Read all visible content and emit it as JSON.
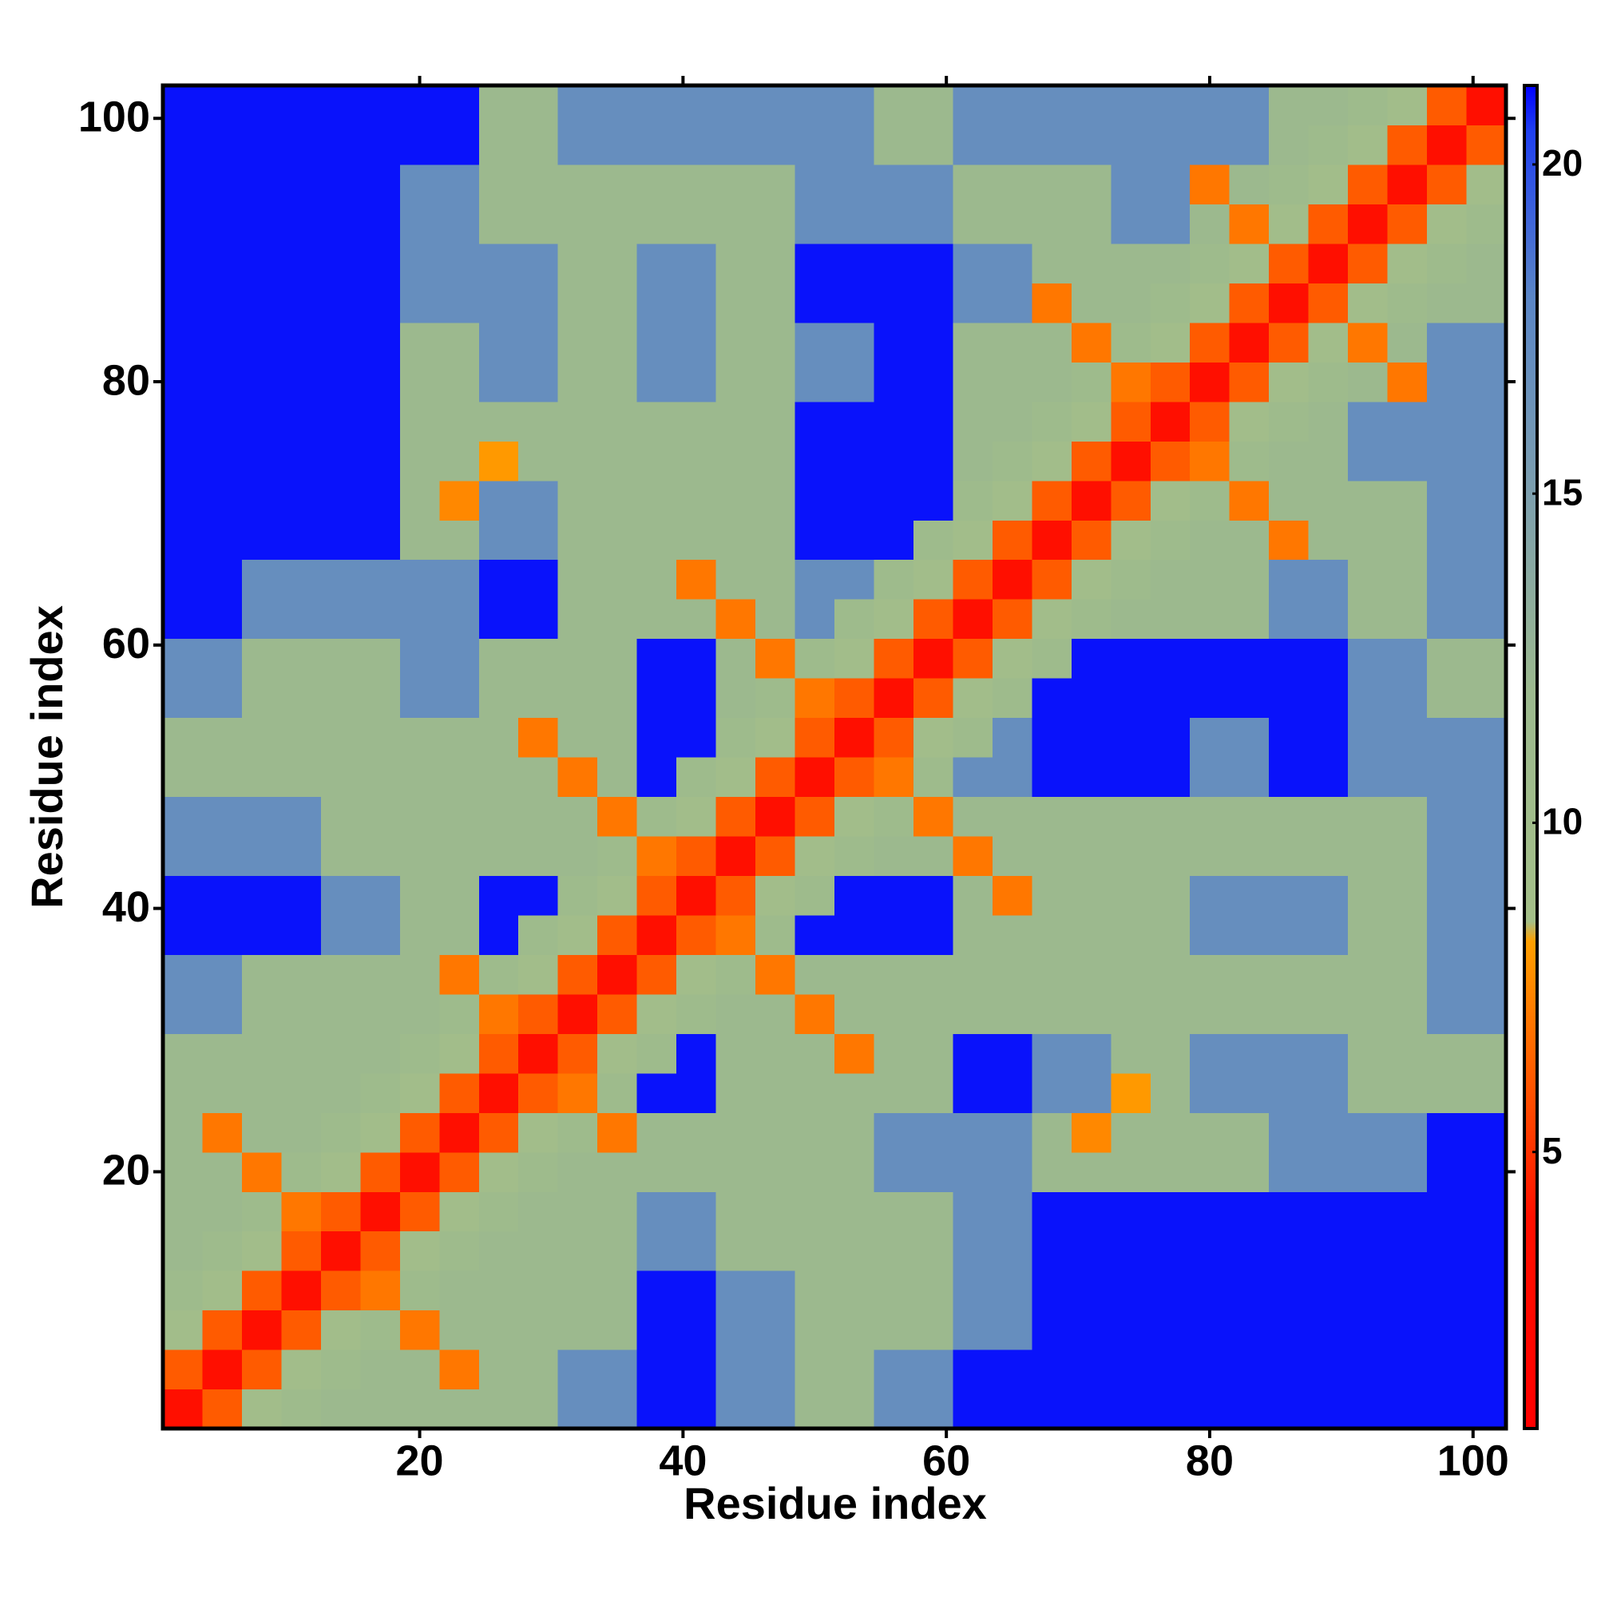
{
  "chart_data": {
    "type": "heatmap",
    "xlabel": "Residue index",
    "ylabel": "Residue index",
    "xlim": [
      0.5,
      102.5
    ],
    "ylim": [
      0.5,
      102.5
    ],
    "xticks": [
      20,
      40,
      60,
      80,
      100
    ],
    "yticks": [
      20,
      40,
      60,
      80,
      100
    ],
    "zlim": [
      0.8,
      21.2
    ],
    "zticks": [
      5,
      10,
      15,
      20
    ],
    "colorscale": [
      {
        "value": 0.8,
        "color": "#ff0000"
      },
      {
        "value": 4,
        "color": "#ff1000"
      },
      {
        "value": 8.2,
        "color": "#ffa000"
      },
      {
        "value": 8.5,
        "color": "#a4bf88"
      },
      {
        "value": 12,
        "color": "#9cb98e"
      },
      {
        "value": 15,
        "color": "#7d9fae"
      },
      {
        "value": 18,
        "color": "#5a85c6"
      },
      {
        "value": 20.5,
        "color": "#2040f0"
      },
      {
        "value": 21.2,
        "color": "#0000ff"
      }
    ],
    "x": [
      2,
      5,
      8,
      11,
      14,
      17,
      20,
      23,
      26,
      29,
      32,
      35,
      38,
      41,
      44,
      47,
      50,
      53,
      56,
      59,
      62,
      65,
      68,
      71,
      74,
      77,
      80,
      83,
      86,
      89,
      92,
      95,
      98,
      101
    ],
    "y": [
      2,
      5,
      8,
      11,
      14,
      17,
      20,
      23,
      26,
      29,
      32,
      35,
      38,
      41,
      44,
      47,
      50,
      53,
      56,
      59,
      62,
      65,
      68,
      71,
      74,
      77,
      80,
      83,
      86,
      89,
      92,
      95,
      98,
      101
    ],
    "z": [
      [
        3.8,
        6.2,
        9.5,
        11,
        12,
        12,
        12,
        12,
        12,
        12,
        17,
        17,
        21,
        21,
        17,
        17,
        12,
        12,
        17,
        17,
        21,
        21,
        21,
        21,
        21,
        21,
        21,
        21,
        21,
        21,
        21,
        21,
        21,
        21
      ],
      [
        6.2,
        3.8,
        6.2,
        9.5,
        11,
        12,
        12,
        7,
        12,
        12,
        17,
        17,
        21,
        21,
        17,
        17,
        12,
        12,
        17,
        17,
        21,
        21,
        21,
        21,
        21,
        21,
        21,
        21,
        21,
        21,
        21,
        21,
        21,
        21
      ],
      [
        9.5,
        6.2,
        3.8,
        6.2,
        9.5,
        11,
        7,
        12,
        12,
        12,
        12,
        12,
        21,
        21,
        17,
        17,
        12,
        12,
        12,
        12,
        17,
        17,
        21,
        21,
        21,
        21,
        21,
        21,
        21,
        21,
        21,
        21,
        21,
        21
      ],
      [
        11,
        9.5,
        6.2,
        3.8,
        6.2,
        7,
        11,
        12,
        12,
        12,
        12,
        12,
        21,
        21,
        17,
        17,
        12,
        12,
        12,
        12,
        17,
        17,
        21,
        21,
        21,
        21,
        21,
        21,
        21,
        21,
        21,
        21,
        21,
        21
      ],
      [
        12,
        11,
        9.5,
        6.2,
        3.8,
        6.2,
        9.5,
        11,
        12,
        12,
        12,
        12,
        17,
        17,
        12,
        12,
        12,
        12,
        12,
        12,
        17,
        17,
        21,
        21,
        21,
        21,
        21,
        21,
        21,
        21,
        21,
        21,
        21,
        21
      ],
      [
        12,
        12,
        11,
        7,
        6.2,
        3.8,
        6.2,
        9.5,
        11,
        12,
        12,
        12,
        17,
        17,
        12,
        12,
        12,
        12,
        12,
        12,
        17,
        17,
        21,
        21,
        21,
        21,
        21,
        21,
        21,
        21,
        21,
        21,
        21,
        21
      ],
      [
        12,
        12,
        7,
        11,
        9.5,
        6.2,
        3.8,
        6.2,
        9.5,
        11,
        12,
        12,
        12,
        12,
        12,
        12,
        12,
        12,
        17,
        17,
        17,
        17,
        12,
        12,
        12,
        12,
        12,
        12,
        17,
        17,
        17,
        17,
        21,
        21
      ],
      [
        12,
        7,
        12,
        12,
        11,
        9.5,
        6.2,
        3.8,
        6.2,
        9.5,
        11,
        7,
        12,
        12,
        12,
        12,
        12,
        12,
        17,
        17,
        17,
        17,
        12,
        7.5,
        12,
        12,
        12,
        12,
        17,
        17,
        17,
        17,
        21,
        21
      ],
      [
        12,
        12,
        12,
        12,
        12,
        11,
        9.5,
        6.2,
        3.8,
        6.2,
        7,
        11,
        21,
        21,
        12,
        12,
        12,
        12,
        12,
        12,
        21,
        21,
        17,
        17,
        8,
        12,
        17,
        17,
        17,
        17,
        12,
        12,
        12,
        12
      ],
      [
        12,
        12,
        12,
        12,
        12,
        12,
        11,
        9.5,
        6.2,
        3.8,
        6.2,
        9.5,
        11,
        21,
        12,
        12,
        12,
        7,
        12,
        12,
        21,
        21,
        17,
        17,
        12,
        12,
        17,
        17,
        17,
        17,
        12,
        12,
        12,
        12
      ],
      [
        17,
        17,
        12,
        12,
        12,
        12,
        12,
        11,
        7,
        6.2,
        3.8,
        6.2,
        9.5,
        11,
        12,
        12,
        7,
        12,
        12,
        12,
        12,
        12,
        12,
        12,
        12,
        12,
        12,
        12,
        12,
        12,
        12,
        12,
        17,
        17
      ],
      [
        17,
        17,
        12,
        12,
        12,
        12,
        12,
        7,
        11,
        9.5,
        6.2,
        3.8,
        6.2,
        9.5,
        11,
        7,
        12,
        12,
        12,
        12,
        12,
        12,
        12,
        12,
        12,
        12,
        12,
        12,
        12,
        12,
        12,
        12,
        17,
        17
      ],
      [
        21,
        21,
        21,
        21,
        17,
        17,
        12,
        12,
        21,
        11,
        9.5,
        6.2,
        3.8,
        6.2,
        7,
        11,
        21,
        21,
        21,
        21,
        12,
        12,
        12,
        12,
        12,
        12,
        17,
        17,
        17,
        17,
        12,
        12,
        17,
        17
      ],
      [
        21,
        21,
        21,
        21,
        17,
        17,
        12,
        12,
        21,
        21,
        11,
        9.5,
        6.2,
        3.8,
        6.2,
        9.5,
        11,
        21,
        21,
        21,
        12,
        7,
        12,
        12,
        12,
        12,
        17,
        17,
        17,
        17,
        12,
        12,
        17,
        17
      ],
      [
        17,
        17,
        17,
        17,
        12,
        12,
        12,
        12,
        12,
        12,
        12,
        11,
        7,
        6.2,
        3.8,
        6.2,
        9.5,
        11,
        12,
        12,
        7,
        12,
        12,
        12,
        12,
        12,
        12,
        12,
        12,
        12,
        12,
        12,
        17,
        17
      ],
      [
        17,
        17,
        17,
        17,
        12,
        12,
        12,
        12,
        12,
        12,
        12,
        7,
        11,
        9.5,
        6.2,
        3.8,
        6.2,
        9.5,
        11,
        7,
        12,
        12,
        12,
        12,
        12,
        12,
        12,
        12,
        12,
        12,
        12,
        12,
        17,
        17
      ],
      [
        12,
        12,
        12,
        12,
        12,
        12,
        12,
        12,
        12,
        12,
        7,
        12,
        21,
        11,
        9.5,
        6.2,
        3.8,
        6.2,
        7,
        11,
        17,
        17,
        21,
        21,
        21,
        21,
        17,
        17,
        21,
        21,
        17,
        17,
        17,
        17
      ],
      [
        12,
        12,
        12,
        12,
        12,
        12,
        12,
        12,
        12,
        7,
        12,
        12,
        21,
        21,
        11,
        9.5,
        6.2,
        3.8,
        6.2,
        9.5,
        11,
        17,
        21,
        21,
        21,
        21,
        17,
        17,
        21,
        21,
        17,
        17,
        17,
        17
      ],
      [
        17,
        17,
        12,
        12,
        12,
        12,
        17,
        17,
        12,
        12,
        12,
        12,
        21,
        21,
        12,
        11,
        7,
        6.2,
        3.8,
        6.2,
        9.5,
        11,
        21,
        21,
        21,
        21,
        21,
        21,
        21,
        21,
        17,
        17,
        12,
        12
      ],
      [
        17,
        17,
        12,
        12,
        12,
        12,
        17,
        17,
        12,
        12,
        12,
        12,
        21,
        21,
        12,
        7,
        11,
        9.5,
        6.2,
        3.8,
        6.2,
        9.5,
        11,
        21,
        21,
        21,
        21,
        21,
        21,
        21,
        17,
        17,
        12,
        12
      ],
      [
        21,
        21,
        17,
        17,
        17,
        17,
        17,
        17,
        21,
        21,
        12,
        12,
        12,
        12,
        7,
        12,
        17,
        11,
        9.5,
        6.2,
        3.8,
        6.2,
        9.5,
        11,
        12,
        12,
        12,
        12,
        17,
        17,
        12,
        12,
        17,
        17
      ],
      [
        21,
        21,
        17,
        17,
        17,
        17,
        17,
        17,
        21,
        21,
        12,
        12,
        12,
        7,
        12,
        12,
        17,
        17,
        11,
        9.5,
        6.2,
        3.8,
        6.2,
        9.5,
        11,
        12,
        12,
        12,
        17,
        17,
        12,
        12,
        17,
        17
      ],
      [
        21,
        21,
        21,
        21,
        21,
        21,
        12,
        12,
        17,
        17,
        12,
        12,
        12,
        12,
        12,
        12,
        21,
        21,
        21,
        11,
        9.5,
        6.2,
        3.8,
        6.2,
        9.5,
        11,
        12,
        12,
        7,
        12,
        12,
        12,
        17,
        17
      ],
      [
        21,
        21,
        21,
        21,
        21,
        21,
        12,
        7.5,
        17,
        17,
        12,
        12,
        12,
        12,
        12,
        12,
        21,
        21,
        21,
        21,
        11,
        9.5,
        6.2,
        3.8,
        6.2,
        9.5,
        11,
        7,
        12,
        12,
        12,
        12,
        17,
        17
      ],
      [
        21,
        21,
        21,
        21,
        21,
        21,
        12,
        12,
        8,
        12,
        12,
        12,
        12,
        12,
        12,
        12,
        21,
        21,
        21,
        21,
        12,
        11,
        9.5,
        6.2,
        3.8,
        6.2,
        7,
        11,
        12,
        12,
        17,
        17,
        17,
        17
      ],
      [
        21,
        21,
        21,
        21,
        21,
        21,
        12,
        12,
        12,
        12,
        12,
        12,
        12,
        12,
        12,
        12,
        21,
        21,
        21,
        21,
        12,
        12,
        11,
        9.5,
        6.2,
        3.8,
        6.2,
        9.5,
        11,
        12,
        17,
        17,
        17,
        17
      ],
      [
        21,
        21,
        21,
        21,
        21,
        21,
        12,
        12,
        17,
        17,
        12,
        12,
        17,
        17,
        12,
        12,
        17,
        17,
        21,
        21,
        12,
        12,
        12,
        11,
        7,
        6.2,
        3.8,
        6.2,
        9.5,
        11,
        12,
        7,
        17,
        17
      ],
      [
        21,
        21,
        21,
        21,
        21,
        21,
        12,
        12,
        17,
        17,
        12,
        12,
        17,
        17,
        12,
        12,
        17,
        17,
        21,
        21,
        12,
        12,
        12,
        7,
        11,
        9.5,
        6.2,
        3.8,
        6.2,
        9.5,
        7,
        12,
        17,
        17
      ],
      [
        21,
        21,
        21,
        21,
        21,
        21,
        17,
        17,
        17,
        17,
        12,
        12,
        17,
        17,
        12,
        12,
        21,
        21,
        21,
        21,
        17,
        17,
        7,
        12,
        12,
        11,
        9.5,
        6.2,
        3.8,
        6.2,
        9.5,
        11,
        12,
        12
      ],
      [
        21,
        21,
        21,
        21,
        21,
        21,
        17,
        17,
        17,
        17,
        12,
        12,
        17,
        17,
        12,
        12,
        21,
        21,
        21,
        21,
        17,
        17,
        12,
        12,
        12,
        12,
        11,
        9.5,
        6.2,
        3.8,
        6.2,
        9.5,
        11,
        12
      ],
      [
        21,
        21,
        21,
        21,
        21,
        21,
        17,
        17,
        12,
        12,
        12,
        12,
        12,
        12,
        12,
        12,
        17,
        17,
        17,
        17,
        12,
        12,
        12,
        12,
        17,
        17,
        12,
        7,
        9.5,
        6.2,
        3.8,
        6.2,
        9.5,
        11
      ],
      [
        21,
        21,
        21,
        21,
        21,
        21,
        17,
        17,
        12,
        12,
        12,
        12,
        12,
        12,
        12,
        12,
        17,
        17,
        17,
        17,
        12,
        12,
        12,
        12,
        17,
        17,
        7,
        12,
        11,
        9.5,
        6.2,
        3.8,
        6.2,
        9.5
      ],
      [
        21,
        21,
        21,
        21,
        21,
        21,
        21,
        21,
        12,
        12,
        17,
        17,
        17,
        17,
        17,
        17,
        17,
        17,
        12,
        12,
        17,
        17,
        17,
        17,
        17,
        17,
        17,
        17,
        12,
        11,
        9.5,
        6.2,
        3.8,
        6.2
      ],
      [
        21,
        21,
        21,
        21,
        21,
        21,
        21,
        21,
        12,
        12,
        17,
        17,
        17,
        17,
        17,
        17,
        17,
        17,
        12,
        12,
        17,
        17,
        17,
        17,
        17,
        17,
        17,
        17,
        12,
        12,
        11,
        9.5,
        6.2,
        3.8
      ]
    ]
  }
}
